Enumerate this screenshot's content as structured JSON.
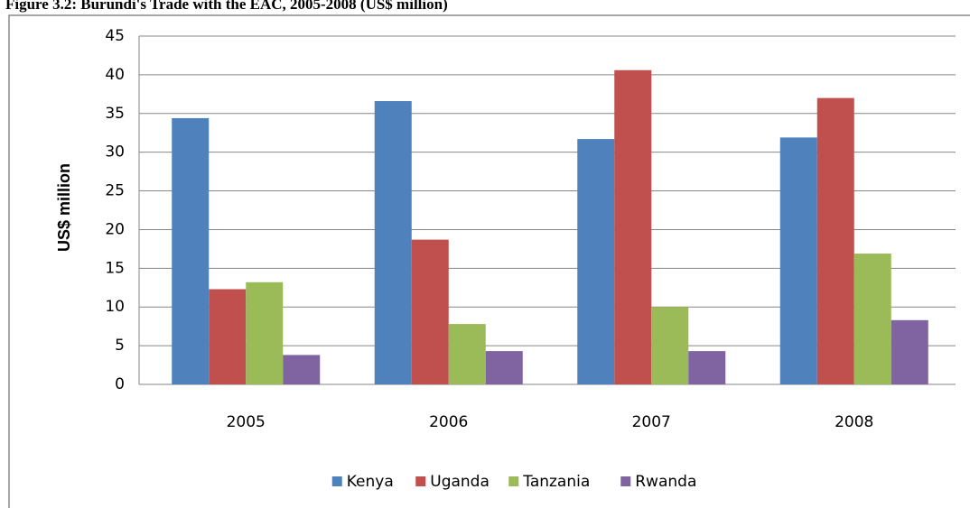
{
  "chart_data": {
    "type": "bar",
    "title": "Figure 3.2: Burundi's Trade with the EAC, 2005-2008 (US$ million)",
    "y_label": "US$ million",
    "categories": [
      "2005",
      "2006",
      "2007",
      "2008"
    ],
    "series": [
      {
        "name": "Kenya",
        "color": "#4f81bd",
        "values": [
          34.4,
          36.6,
          31.7,
          31.9
        ]
      },
      {
        "name": "Uganda",
        "color": "#c0504d",
        "values": [
          12.3,
          18.7,
          40.6,
          37.0
        ]
      },
      {
        "name": "Tanzania",
        "color": "#9bbb59",
        "values": [
          13.2,
          7.8,
          10.0,
          16.9
        ]
      },
      {
        "name": "Rwanda",
        "color": "#8064a2",
        "values": [
          3.8,
          4.3,
          4.3,
          8.3
        ]
      }
    ],
    "ylim": [
      0,
      45
    ],
    "yticks": [
      0,
      5,
      10,
      15,
      20,
      25,
      30,
      35,
      40,
      45
    ],
    "grid": true,
    "legend": "bottom"
  }
}
